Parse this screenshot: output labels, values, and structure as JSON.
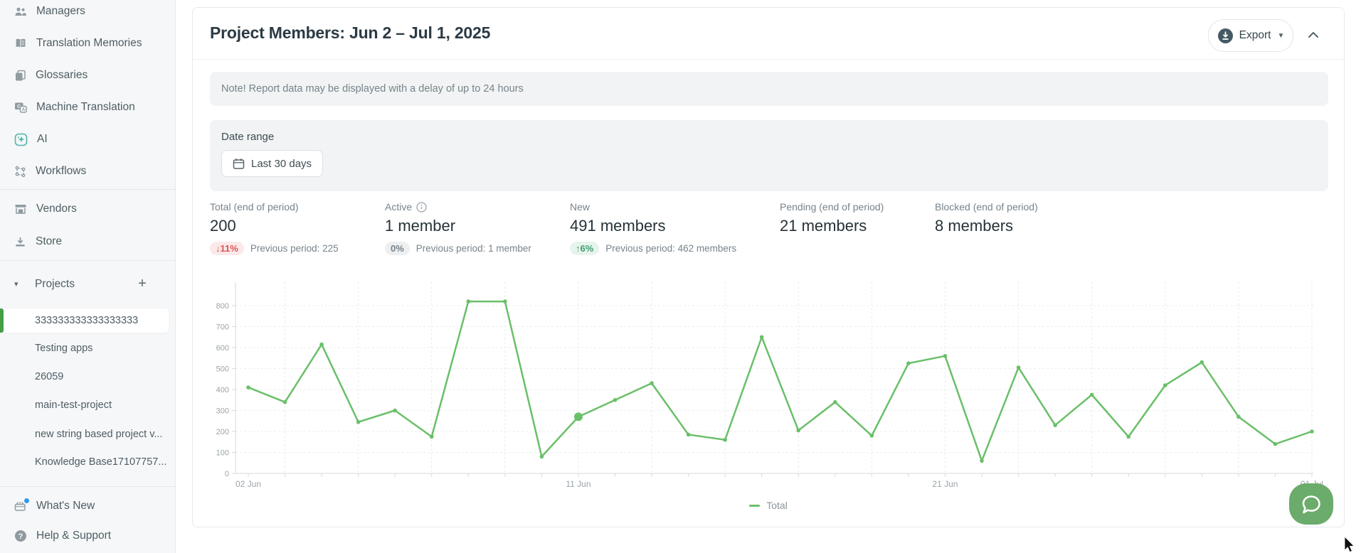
{
  "sidebar": {
    "items": [
      {
        "label": "Managers",
        "icon": "managers-icon"
      },
      {
        "label": "Translation Memories",
        "icon": "translation-memories-icon"
      },
      {
        "label": "Glossaries",
        "icon": "glossaries-icon"
      },
      {
        "label": "Machine Translation",
        "icon": "machine-translation-icon"
      },
      {
        "label": "AI",
        "icon": "ai-icon"
      },
      {
        "label": "Workflows",
        "icon": "workflows-icon"
      },
      {
        "label": "Vendors",
        "icon": "vendors-icon"
      },
      {
        "label": "Store",
        "icon": "store-icon"
      }
    ],
    "projects_header": "Projects",
    "projects": [
      {
        "label": "333333333333333333",
        "selected": true
      },
      {
        "label": "Testing apps"
      },
      {
        "label": "26059"
      },
      {
        "label": "main-test-project"
      },
      {
        "label": "new string based project v..."
      },
      {
        "label": "Knowledge Base17107757..."
      }
    ],
    "footer_items": [
      {
        "label": "What's New",
        "icon": "whats-new-icon",
        "has_notification": true
      },
      {
        "label": "Help & Support",
        "icon": "help-icon"
      }
    ]
  },
  "header": {
    "title": "Project Members: Jun 2 – Jul 1, 2025",
    "export_label": "Export"
  },
  "note": {
    "text": "Note! Report data may be displayed with a delay of up to 24 hours"
  },
  "date_range": {
    "label": "Date range",
    "value": "Last 30 days"
  },
  "stats": [
    {
      "label": "Total (end of period)",
      "value": "200",
      "badge": "↓11%",
      "badge_type": "down",
      "previous": "Previous period: 225"
    },
    {
      "label": "Active",
      "value": "1 member",
      "badge": "0%",
      "badge_type": "neutral",
      "previous": "Previous period: 1 member"
    },
    {
      "label": "New",
      "value": "491 members",
      "badge": "↑6%",
      "badge_type": "up",
      "previous": "Previous period: 462 members"
    },
    {
      "label": "Pending (end of period)",
      "value": "21 members"
    },
    {
      "label": "Blocked (end of period)",
      "value": "8 members"
    }
  ],
  "chart_data": {
    "type": "line",
    "x": [
      "02 Jun",
      "03 Jun",
      "04 Jun",
      "05 Jun",
      "06 Jun",
      "07 Jun",
      "08 Jun",
      "09 Jun",
      "10 Jun",
      "11 Jun",
      "12 Jun",
      "13 Jun",
      "14 Jun",
      "15 Jun",
      "16 Jun",
      "17 Jun",
      "18 Jun",
      "19 Jun",
      "20 Jun",
      "21 Jun",
      "22 Jun",
      "23 Jun",
      "24 Jun",
      "25 Jun",
      "26 Jun",
      "27 Jun",
      "28 Jun",
      "29 Jun",
      "30 Jun",
      "01 Jul"
    ],
    "series": [
      {
        "name": "Total",
        "color": "#6abf69",
        "values": [
          410,
          340,
          615,
          245,
          300,
          175,
          820,
          820,
          80,
          270,
          350,
          430,
          185,
          160,
          650,
          205,
          340,
          180,
          525,
          560,
          60,
          505,
          230,
          375,
          175,
          420,
          530,
          270,
          140,
          200
        ]
      }
    ],
    "y_ticks": [
      0,
      100,
      200,
      300,
      400,
      500,
      600,
      700,
      800
    ],
    "ylim": [
      0,
      900
    ],
    "x_label_indices": [
      0,
      9,
      19,
      29
    ],
    "highlight_index": 9,
    "grid": true,
    "legend_position": "bottom"
  },
  "colors": {
    "chart_line": "#6abf69",
    "selected_project": "#43a047",
    "ai_accent": "#4db6ac",
    "notification_blue": "#2f9bf0",
    "chat_launcher": "#6bab6b",
    "badge_down": "#e05252",
    "badge_up": "#3f9e6e"
  }
}
